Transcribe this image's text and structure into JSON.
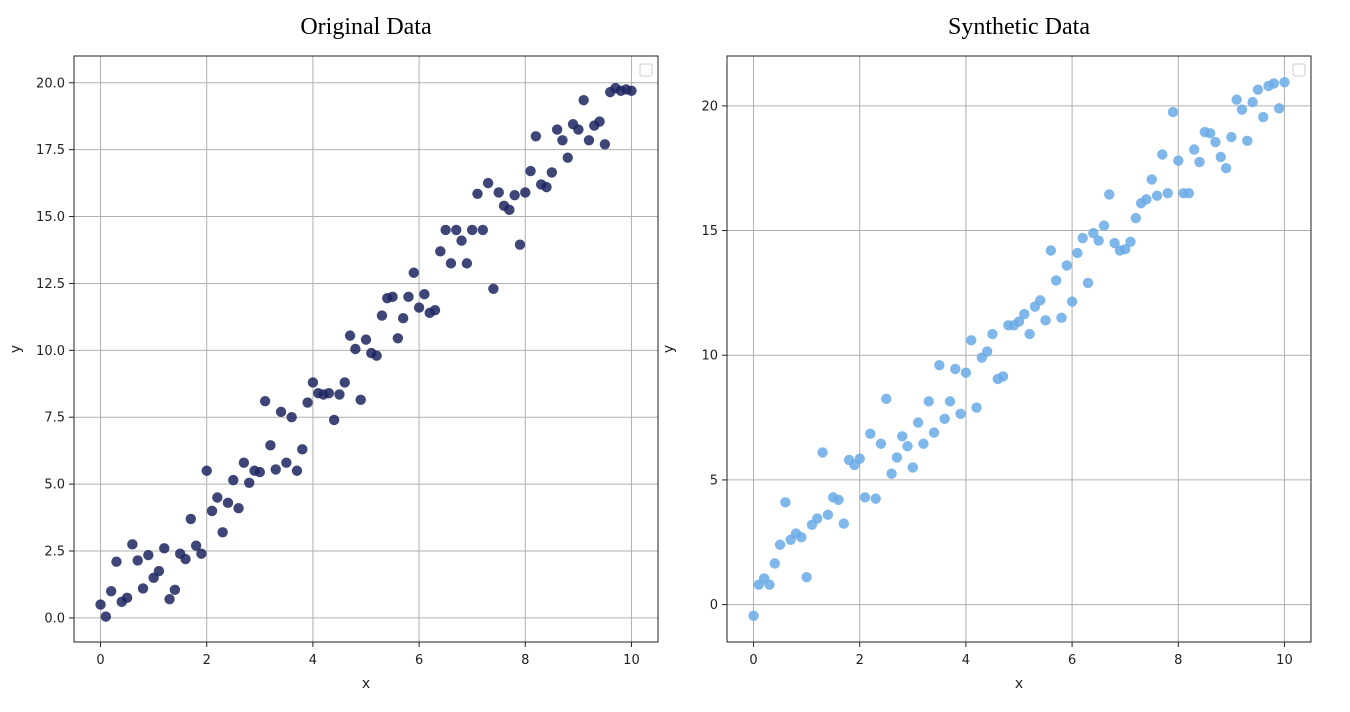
{
  "chart_data": [
    {
      "type": "scatter",
      "title": "Original Data",
      "xlabel": "x",
      "ylabel": "y",
      "xlim": [
        -0.5,
        10.5
      ],
      "ylim": [
        -0.9,
        21.0
      ],
      "xticks": [
        0,
        2,
        4,
        6,
        8,
        10
      ],
      "xtick_labels": [
        "0",
        "2",
        "4",
        "6",
        "8",
        "10"
      ],
      "yticks": [
        0,
        2.5,
        5,
        7.5,
        10,
        12.5,
        15,
        17.5,
        20
      ],
      "ytick_labels": [
        "0.0",
        "2.5",
        "5.0",
        "7.5",
        "10.0",
        "12.5",
        "15.0",
        "17.5",
        "20.0"
      ],
      "grid": true,
      "legend": "top-right",
      "marker_color": "#1c2660",
      "series": [
        {
          "x": [
            0.0,
            0.1,
            0.2,
            0.3,
            0.4,
            0.5,
            0.6,
            0.7,
            0.8,
            0.9,
            1.0,
            1.1,
            1.2,
            1.3,
            1.4,
            1.5,
            1.6,
            1.7,
            1.8,
            1.9,
            2.0,
            2.1,
            2.2,
            2.3,
            2.4,
            2.5,
            2.6,
            2.7,
            2.8,
            2.9,
            3.0,
            3.1,
            3.2,
            3.3,
            3.4,
            3.5,
            3.6,
            3.7,
            3.8,
            3.9,
            4.0,
            4.1,
            4.2,
            4.3,
            4.4,
            4.5,
            4.6,
            4.7,
            4.8,
            4.9,
            5.0,
            5.1,
            5.2,
            5.3,
            5.4,
            5.5,
            5.6,
            5.7,
            5.8,
            5.9,
            6.0,
            6.1,
            6.2,
            6.3,
            6.4,
            6.5,
            6.6,
            6.7,
            6.8,
            6.9,
            7.0,
            7.1,
            7.2,
            7.3,
            7.4,
            7.5,
            7.6,
            7.7,
            7.8,
            7.9,
            8.0,
            8.1,
            8.2,
            8.3,
            8.4,
            8.5,
            8.6,
            8.7,
            8.8,
            8.9,
            9.0,
            9.1,
            9.2,
            9.3,
            9.4,
            9.5,
            9.6,
            9.7,
            9.8,
            9.9,
            10.0
          ],
          "y": [
            0.5,
            0.05,
            1.0,
            2.1,
            0.6,
            0.75,
            2.75,
            2.15,
            1.1,
            2.35,
            1.5,
            1.75,
            2.6,
            0.7,
            1.05,
            2.4,
            2.2,
            3.7,
            2.7,
            2.4,
            5.5,
            4.0,
            4.5,
            3.2,
            4.3,
            5.15,
            4.1,
            5.8,
            5.05,
            5.5,
            5.45,
            8.1,
            6.45,
            5.55,
            7.7,
            5.8,
            7.5,
            5.5,
            6.3,
            8.05,
            8.8,
            8.4,
            8.35,
            8.4,
            7.4,
            8.35,
            8.8,
            10.55,
            10.05,
            8.15,
            10.4,
            9.9,
            9.8,
            11.3,
            11.95,
            12.0,
            10.45,
            11.2,
            12.0,
            12.9,
            11.6,
            12.1,
            11.4,
            11.5,
            13.7,
            14.5,
            13.25,
            14.5,
            14.1,
            13.25,
            14.5,
            15.85,
            14.5,
            16.25,
            12.3,
            15.9,
            15.4,
            15.25,
            15.8,
            13.95,
            15.9,
            16.7,
            18.0,
            16.2,
            16.1,
            16.65,
            18.25,
            17.85,
            17.2,
            18.45,
            18.25,
            19.35,
            17.85,
            18.4,
            18.55,
            17.7,
            19.65,
            19.8,
            19.7,
            19.75,
            19.7
          ]
        }
      ]
    },
    {
      "type": "scatter",
      "title": "Synthetic Data",
      "xlabel": "x",
      "ylabel": "y",
      "xlim": [
        -0.5,
        10.5
      ],
      "ylim": [
        -1.5,
        22.0
      ],
      "xticks": [
        0,
        2,
        4,
        6,
        8,
        10
      ],
      "xtick_labels": [
        "0",
        "2",
        "4",
        "6",
        "8",
        "10"
      ],
      "yticks": [
        0,
        5,
        10,
        15,
        20
      ],
      "ytick_labels": [
        "0",
        "5",
        "10",
        "15",
        "20"
      ],
      "grid": true,
      "legend": "top-right",
      "marker_color": "#6aaae6",
      "series": [
        {
          "x": [
            0.0,
            0.1,
            0.2,
            0.3,
            0.4,
            0.5,
            0.6,
            0.7,
            0.8,
            0.9,
            1.0,
            1.1,
            1.2,
            1.3,
            1.4,
            1.5,
            1.6,
            1.7,
            1.8,
            1.9,
            2.0,
            2.1,
            2.2,
            2.3,
            2.4,
            2.5,
            2.6,
            2.7,
            2.8,
            2.9,
            3.0,
            3.1,
            3.2,
            3.3,
            3.4,
            3.5,
            3.6,
            3.7,
            3.8,
            3.9,
            4.0,
            4.1,
            4.2,
            4.3,
            4.4,
            4.5,
            4.6,
            4.7,
            4.8,
            4.9,
            5.0,
            5.1,
            5.2,
            5.3,
            5.4,
            5.5,
            5.6,
            5.7,
            5.8,
            5.9,
            6.0,
            6.1,
            6.2,
            6.3,
            6.4,
            6.5,
            6.6,
            6.7,
            6.8,
            6.9,
            7.0,
            7.1,
            7.2,
            7.3,
            7.4,
            7.5,
            7.6,
            7.7,
            7.8,
            7.9,
            8.0,
            8.1,
            8.2,
            8.3,
            8.4,
            8.5,
            8.6,
            8.7,
            8.8,
            8.9,
            9.0,
            9.1,
            9.2,
            9.3,
            9.4,
            9.5,
            9.6,
            9.7,
            9.8,
            9.9,
            10.0
          ],
          "y": [
            -0.45,
            0.8,
            1.05,
            0.8,
            1.65,
            2.4,
            4.1,
            2.6,
            2.85,
            2.7,
            1.1,
            3.2,
            3.45,
            6.1,
            3.6,
            4.3,
            4.2,
            3.25,
            5.8,
            5.6,
            5.85,
            4.3,
            6.85,
            4.25,
            6.45,
            8.25,
            5.25,
            5.9,
            6.75,
            6.35,
            5.5,
            7.3,
            6.45,
            8.15,
            6.9,
            9.6,
            7.45,
            8.15,
            9.45,
            7.65,
            9.3,
            10.6,
            7.9,
            9.9,
            10.15,
            10.85,
            9.05,
            9.15,
            11.2,
            11.2,
            11.35,
            11.65,
            10.85,
            11.95,
            12.2,
            11.4,
            14.2,
            13.0,
            11.5,
            13.6,
            12.15,
            14.1,
            14.7,
            12.9,
            14.9,
            14.6,
            15.2,
            16.45,
            14.5,
            14.2,
            14.25,
            14.55,
            15.5,
            16.1,
            16.25,
            17.05,
            16.4,
            18.05,
            16.5,
            19.75,
            17.8,
            16.5,
            16.5,
            18.25,
            17.75,
            18.95,
            18.9,
            18.55,
            17.95,
            17.5,
            18.75,
            20.25,
            19.85,
            18.6,
            20.15,
            20.65,
            19.55,
            20.8,
            20.9,
            19.9,
            20.95
          ]
        }
      ]
    }
  ]
}
